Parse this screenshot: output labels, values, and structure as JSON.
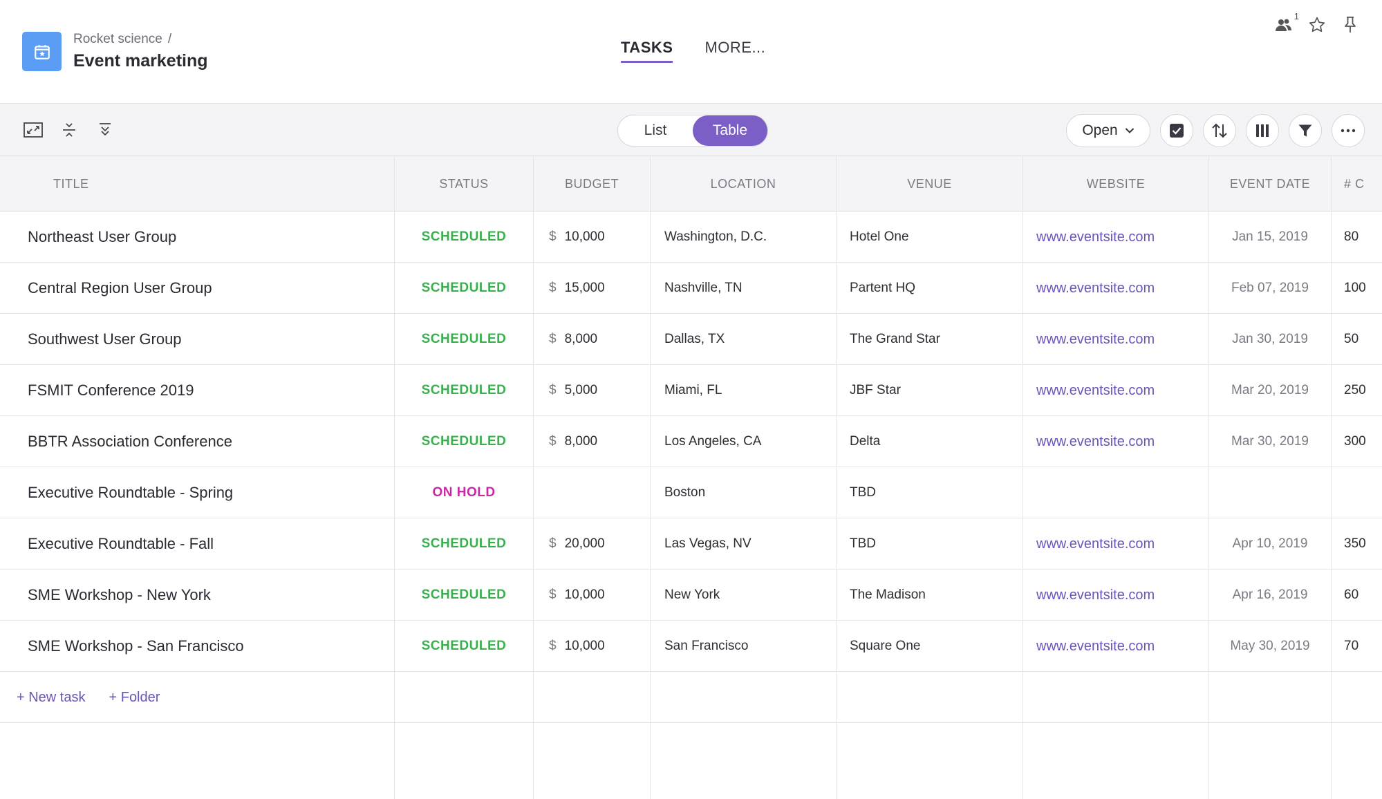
{
  "header": {
    "breadcrumb": "Rocket science",
    "breadcrumb_sep": "/",
    "title": "Event marketing",
    "tabs": [
      {
        "label": "TASKS",
        "active": true
      },
      {
        "label": "MORE..."
      }
    ],
    "user_count": "1"
  },
  "toolbar": {
    "view_toggle": [
      {
        "label": "List",
        "active": false
      },
      {
        "label": "Table",
        "active": true
      }
    ],
    "status_filter": "Open"
  },
  "table": {
    "columns": [
      "TITLE",
      "STATUS",
      "BUDGET",
      "LOCATION",
      "VENUE",
      "WEBSITE",
      "EVENT DATE",
      "# C"
    ],
    "rows": [
      {
        "title": "Northeast User Group",
        "status": "SCHEDULED",
        "currency": "$",
        "budget": "10,000",
        "location": "Washington, D.C.",
        "venue": "Hotel One",
        "website": "www.eventsite.com",
        "date": "Jan 15, 2019",
        "count": "80"
      },
      {
        "title": "Central Region User Group",
        "status": "SCHEDULED",
        "currency": "$",
        "budget": "15,000",
        "location": "Nashville, TN",
        "venue": "Partent HQ",
        "website": "www.eventsite.com",
        "date": "Feb 07, 2019",
        "count": "100"
      },
      {
        "title": "Southwest User Group",
        "status": "SCHEDULED",
        "currency": "$",
        "budget": "8,000",
        "location": "Dallas, TX",
        "venue": "The Grand Star",
        "website": "www.eventsite.com",
        "date": "Jan 30, 2019",
        "count": "50"
      },
      {
        "title": "FSMIT Conference 2019",
        "status": "SCHEDULED",
        "currency": "$",
        "budget": "5,000",
        "location": "Miami, FL",
        "venue": "JBF Star",
        "website": "www.eventsite.com",
        "date": "Mar 20, 2019",
        "count": "250"
      },
      {
        "title": "BBTR Association Conference",
        "status": "SCHEDULED",
        "currency": "$",
        "budget": "8,000",
        "location": "Los Angeles, CA",
        "venue": "Delta",
        "website": "www.eventsite.com",
        "date": "Mar 30, 2019",
        "count": "300"
      },
      {
        "title": "Executive Roundtable - Spring",
        "status": "ON HOLD",
        "currency": "",
        "budget": "",
        "location": "Boston",
        "venue": "TBD",
        "website": "",
        "date": "",
        "count": ""
      },
      {
        "title": "Executive Roundtable - Fall",
        "status": "SCHEDULED",
        "currency": "$",
        "budget": "20,000",
        "location": "Las Vegas, NV",
        "venue": "TBD",
        "website": "www.eventsite.com",
        "date": "Apr 10, 2019",
        "count": "350"
      },
      {
        "title": "SME Workshop - New York",
        "status": "SCHEDULED",
        "currency": "$",
        "budget": "10,000",
        "location": "New York",
        "venue": "The Madison",
        "website": "www.eventsite.com",
        "date": "Apr 16, 2019",
        "count": "60"
      },
      {
        "title": "SME Workshop - San Francisco",
        "status": "SCHEDULED",
        "currency": "$",
        "budget": "10,000",
        "location": "San Francisco",
        "venue": "Square One",
        "website": "www.eventsite.com",
        "date": "May 30, 2019",
        "count": "70"
      }
    ],
    "new_task_label": "+ New task",
    "new_folder_label": "+ Folder"
  },
  "colors": {
    "accent": "#7b5fc7",
    "project_icon": "#5b9cf5",
    "status_scheduled": "#3aaf4e",
    "status_on_hold": "#c72aa5",
    "link": "#6c54b8"
  },
  "icons": {
    "project": "calendar-star-icon",
    "users": "users-icon",
    "star": "star-icon",
    "pin": "pin-icon",
    "expand": "fullscreen-icon",
    "collapse": "collapse-icon",
    "expand_all": "expand-all-icon",
    "checkbox": "checkbox-icon",
    "sort": "sort-icon",
    "columns": "columns-icon",
    "filter": "filter-icon",
    "more": "more-icon"
  }
}
